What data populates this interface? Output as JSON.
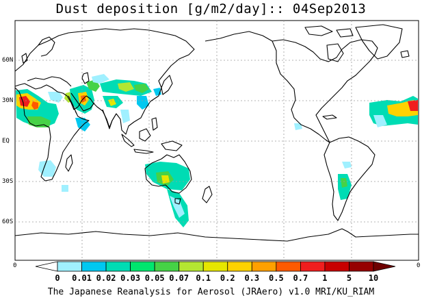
{
  "title": "Dust deposition [g/m2/day]:: 04Sep2013",
  "footer": "The Japanese Reanalysis for Aerosol (JRAero) v1.0 MRI/KU_RIAM",
  "latitude_labels": [
    "60N",
    "30N",
    "EQ",
    "30S",
    "60S"
  ],
  "edge_labels": {
    "left": "0",
    "right": "0"
  },
  "colorbar": {
    "labels": [
      "0",
      "0.01",
      "0.02",
      "0.03",
      "0.05",
      "0.07",
      "0.1",
      "0.2",
      "0.3",
      "0.5",
      "0.7",
      "1",
      "5",
      "10"
    ],
    "colors": [
      "#ffffff",
      "#a0f0ff",
      "#00c8f0",
      "#00dcb4",
      "#00e66e",
      "#46d246",
      "#b4e632",
      "#e6e600",
      "#ffd200",
      "#ffa000",
      "#ff5a00",
      "#f01e1e",
      "#c80000",
      "#960000",
      "#6e0000"
    ]
  }
}
